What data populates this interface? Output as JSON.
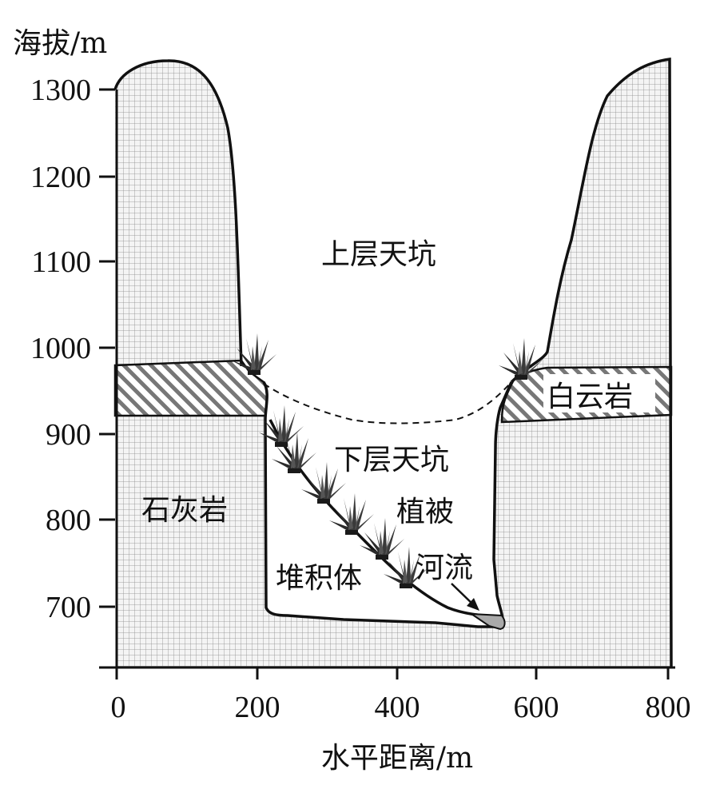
{
  "axes": {
    "y_title": "海拔/m",
    "x_title": "水平距离/m",
    "y_ticks": [
      700,
      800,
      900,
      1000,
      1100,
      1200,
      1300
    ],
    "x_ticks": [
      0,
      200,
      400,
      600,
      800
    ],
    "y_tick_labels": [
      "700",
      "800",
      "900",
      "1000",
      "1100",
      "1200",
      "1300"
    ],
    "x_tick_labels": [
      "0",
      "200",
      "400",
      "600",
      "800"
    ]
  },
  "labels": {
    "upper_sinkhole": "上层天坑",
    "lower_sinkhole": "下层天坑",
    "vegetation": "植被",
    "river": "河流",
    "deposit": "堆积体",
    "limestone": "石灰岩",
    "dolomite": "白云岩"
  },
  "colors": {
    "grid_fill": "#f4f4f4",
    "grid_line": "#8a8a8a",
    "outline": "#111111",
    "river_fill": "#a9a9a9",
    "plant": "#2b2b2b"
  }
}
